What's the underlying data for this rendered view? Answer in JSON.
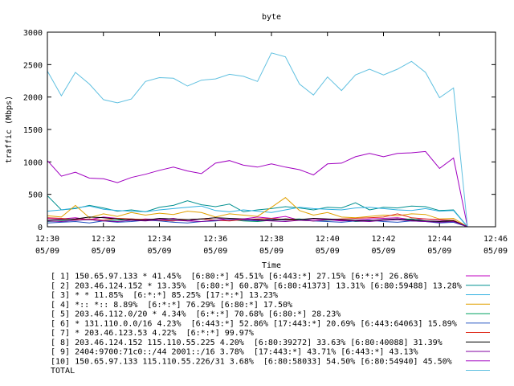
{
  "chart_data": {
    "type": "line",
    "title": "byte",
    "xlabel": "Time",
    "ylabel": "traffic (Mbps)",
    "ylim": [
      0,
      3000
    ],
    "yticks": [
      0,
      500,
      1000,
      1500,
      2000,
      2500,
      3000
    ],
    "xlim": [
      "12:30",
      "12:46"
    ],
    "xticks": [
      {
        "time": "12:30",
        "date": "05/09"
      },
      {
        "time": "12:32",
        "date": "05/09"
      },
      {
        "time": "12:34",
        "date": "05/09"
      },
      {
        "time": "12:36",
        "date": "05/09"
      },
      {
        "time": "12:38",
        "date": "05/09"
      },
      {
        "time": "12:40",
        "date": "05/09"
      },
      {
        "time": "12:42",
        "date": "05/09"
      },
      {
        "time": "12:44",
        "date": "05/09"
      },
      {
        "time": "12:46",
        "date": "05/09"
      }
    ],
    "grid": false,
    "legend_position": "bottom",
    "x": [
      "12:30:00",
      "12:30:30",
      "12:31:00",
      "12:31:30",
      "12:32:00",
      "12:32:30",
      "12:33:00",
      "12:33:30",
      "12:34:00",
      "12:34:30",
      "12:35:00",
      "12:35:30",
      "12:36:00",
      "12:36:30",
      "12:37:00",
      "12:37:30",
      "12:38:00",
      "12:38:30",
      "12:39:00",
      "12:39:30",
      "12:40:00",
      "12:40:30",
      "12:41:00",
      "12:41:30",
      "12:42:00",
      "12:42:30",
      "12:43:00",
      "12:43:30",
      "12:44:00",
      "12:44:30",
      "12:45:00"
    ],
    "series": [
      {
        "name": "[ 1] 150.65.97.133 * 41.45%  [6:80:*] 45.51% [6:443:*] 27.15% [6:*:*] 26.86%",
        "color": "#c000c0",
        "values": [
          130,
          120,
          140,
          110,
          150,
          130,
          100,
          120,
          110,
          130,
          90,
          120,
          140,
          100,
          120,
          150,
          130,
          160,
          100,
          120,
          110,
          90,
          100,
          120,
          130,
          140,
          110,
          120,
          100,
          90,
          0
        ]
      },
      {
        "name": "[ 2] 203.46.124.152 * 13.35%  [6:80:*] 60.87% [6:80:41373] 13.31% [6:80:59488] 13.28%",
        "color": "#009090",
        "values": [
          480,
          260,
          280,
          330,
          290,
          240,
          260,
          230,
          300,
          330,
          400,
          340,
          310,
          350,
          230,
          260,
          280,
          310,
          290,
          260,
          300,
          290,
          370,
          260,
          300,
          290,
          320,
          310,
          250,
          260,
          0
        ]
      },
      {
        "name": "[ 3] * * 11.85%  [6:*:*] 85.25% [17:*:*] 13.23%",
        "color": "#30b0e0",
        "values": [
          240,
          260,
          290,
          320,
          270,
          250,
          240,
          230,
          260,
          280,
          300,
          320,
          250,
          230,
          260,
          240,
          220,
          260,
          300,
          280,
          270,
          260,
          290,
          300,
          280,
          260,
          250,
          280,
          240,
          250,
          0
        ]
      },
      {
        "name": "[ 4] *:: *:: 8.89%  [6:*:*] 76.29% [6:80:*] 17.50%",
        "color": "#e0a000",
        "values": [
          170,
          150,
          330,
          140,
          200,
          160,
          220,
          180,
          210,
          190,
          240,
          220,
          150,
          200,
          180,
          160,
          300,
          450,
          250,
          180,
          220,
          150,
          140,
          160,
          180,
          170,
          200,
          190,
          120,
          130,
          0
        ]
      },
      {
        "name": "[ 5] 203.46.112.0/20 * 4.34%  [6:*:*] 70.68% [6:80:*] 28.23%",
        "color": "#00a060",
        "values": [
          80,
          90,
          100,
          110,
          90,
          100,
          120,
          110,
          100,
          90,
          110,
          120,
          100,
          110,
          90,
          80,
          100,
          110,
          120,
          90,
          100,
          110,
          80,
          90,
          100,
          110,
          120,
          90,
          80,
          100,
          0
        ]
      },
      {
        "name": "[ 6] * 131.110.0.0/16 4.23%  [6:443:*] 52.86% [17:443:*] 20.69% [6:443:64063] 15.89%",
        "color": "#2050c0",
        "values": [
          60,
          70,
          80,
          60,
          90,
          70,
          80,
          100,
          90,
          70,
          60,
          80,
          90,
          110,
          100,
          90,
          120,
          100,
          110,
          90,
          80,
          70,
          90,
          100,
          80,
          70,
          90,
          80,
          60,
          70,
          0
        ]
      },
      {
        "name": "[ 7] * 203.46.123.53 4.22%  [6:*:*] 99.97%",
        "color": "#e03020",
        "values": [
          140,
          130,
          110,
          120,
          100,
          130,
          120,
          110,
          100,
          90,
          110,
          120,
          100,
          90,
          110,
          120,
          130,
          110,
          100,
          90,
          110,
          120,
          130,
          140,
          150,
          200,
          140,
          120,
          110,
          100,
          0
        ]
      },
      {
        "name": "[ 8] 203.46.124.152 115.110.55.225 4.20%  [6:80:39272] 33.63% [6:80:40088] 31.39%",
        "color": "#000000",
        "values": [
          100,
          110,
          120,
          150,
          140,
          120,
          110,
          100,
          130,
          120,
          110,
          120,
          140,
          130,
          120,
          110,
          100,
          120,
          110,
          130,
          120,
          110,
          100,
          90,
          110,
          120,
          100,
          90,
          80,
          90,
          0
        ]
      },
      {
        "name": "[ 9] 2404:9700:71c0::/44 2001::/16 3.78%  [17:443:*] 43.71% [6:443:*] 43.13%",
        "color": "#8000a0",
        "values": [
          90,
          80,
          100,
          110,
          90,
          80,
          100,
          90,
          110,
          100,
          90,
          80,
          100,
          110,
          120,
          100,
          90,
          80,
          100,
          90,
          110,
          100,
          90,
          80,
          100,
          110,
          90,
          80,
          70,
          80,
          0
        ]
      },
      {
        "name": "[10] 150.65.97.133 115.110.55.226/31 3.68%  [6:80:58033] 54.50% [6:80:54940] 45.50%",
        "color": "#a000c0",
        "values": [
          1020,
          780,
          840,
          750,
          740,
          680,
          760,
          810,
          870,
          920,
          860,
          820,
          980,
          1020,
          950,
          920,
          970,
          920,
          880,
          800,
          970,
          980,
          1080,
          1130,
          1080,
          1130,
          1140,
          1160,
          900,
          1060,
          0
        ]
      },
      {
        "name": "TOTAL",
        "color": "#60c0e0",
        "values": [
          2400,
          2020,
          2380,
          2200,
          1960,
          1910,
          1970,
          2240,
          2300,
          2290,
          2170,
          2260,
          2280,
          2350,
          2320,
          2240,
          2680,
          2620,
          2200,
          2030,
          2310,
          2100,
          2340,
          2430,
          2340,
          2430,
          2550,
          2380,
          1990,
          2140,
          0
        ]
      }
    ]
  }
}
